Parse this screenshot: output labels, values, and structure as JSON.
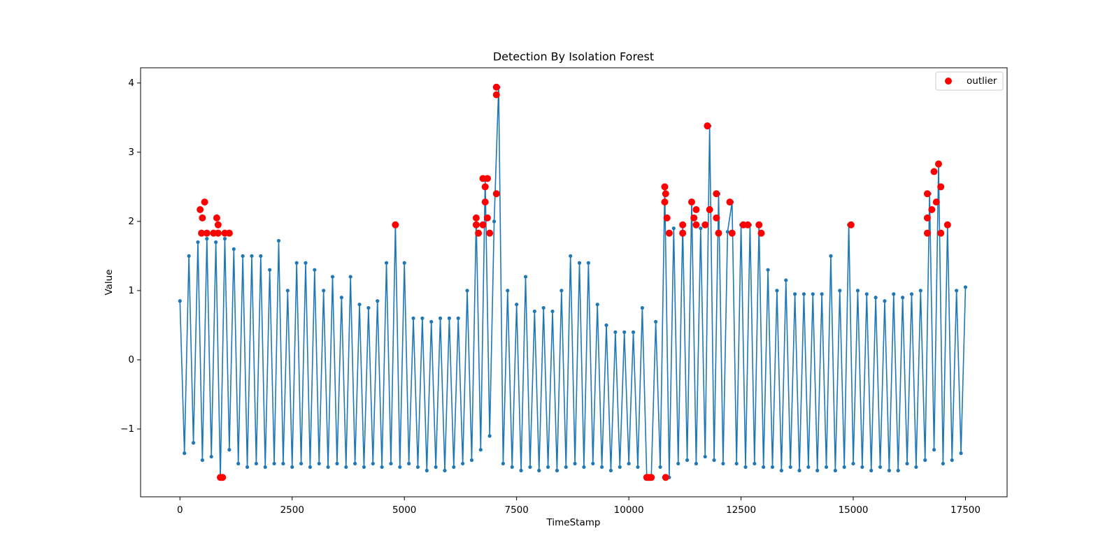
{
  "chart_data": {
    "type": "line",
    "title": "Detection By Isolation Forest",
    "xlabel": "TimeStamp",
    "ylabel": "Value",
    "xlim": [
      -877,
      18427
    ],
    "ylim": [
      -1.98,
      4.22
    ],
    "xticks": [
      0,
      2500,
      5000,
      7500,
      10000,
      12500,
      15000,
      17500
    ],
    "yticks": [
      {
        "value": -1,
        "label": "−1"
      },
      0,
      1,
      2,
      3,
      4
    ],
    "legend": "upper right",
    "series": [
      {
        "color": "#1f77b4",
        "marker": "circle",
        "x": [
          0,
          100,
          200,
          300,
          400,
          500,
          600,
          700,
          800,
          900,
          1000,
          1100,
          1200,
          1300,
          1400,
          1500,
          1600,
          1700,
          1800,
          1900,
          2000,
          2100,
          2200,
          2300,
          2400,
          2500,
          2600,
          2700,
          2800,
          2900,
          3000,
          3100,
          3200,
          3300,
          3400,
          3500,
          3600,
          3700,
          3800,
          3900,
          4000,
          4100,
          4200,
          4300,
          4400,
          4500,
          4600,
          4700,
          4800,
          4900,
          5000,
          5100,
          5200,
          5300,
          5400,
          5500,
          5600,
          5700,
          5800,
          5900,
          6000,
          6100,
          6200,
          6300,
          6400,
          6500,
          6600,
          6700,
          6800,
          6900,
          7000,
          7100,
          7200,
          7300,
          7400,
          7500,
          7600,
          7700,
          7800,
          7900,
          8000,
          8100,
          8200,
          8300,
          8400,
          8500,
          8600,
          8700,
          8800,
          8900,
          9000,
          9100,
          9200,
          9300,
          9400,
          9500,
          9600,
          9700,
          9800,
          9900,
          10000,
          10100,
          10200,
          10300,
          10400,
          10500,
          10600,
          10700,
          10800,
          10900,
          11000,
          11100,
          11200,
          11300,
          11400,
          11500,
          11600,
          11700,
          11800,
          11900,
          12000,
          12100,
          12200,
          12300,
          12400,
          12500,
          12600,
          12700,
          12800,
          12900,
          13000,
          13100,
          13200,
          13300,
          13400,
          13500,
          13600,
          13700,
          13800,
          13900,
          14000,
          14100,
          14200,
          14300,
          14400,
          14500,
          14600,
          14700,
          14800,
          14900,
          15000,
          15100,
          15200,
          15300,
          15400,
          15500,
          15600,
          15700,
          15800,
          15900,
          16000,
          16100,
          16200,
          16300,
          16400,
          16500,
          16600,
          16700,
          16800,
          16900,
          17000,
          17100,
          17200,
          17300,
          17400,
          17500
        ],
        "values": [
          0.85,
          -1.35,
          1.5,
          -1.2,
          1.7,
          -1.45,
          1.75,
          -1.4,
          1.7,
          -1.7,
          1.75,
          -1.3,
          1.6,
          -1.5,
          1.5,
          -1.55,
          1.5,
          -1.5,
          1.5,
          -1.55,
          1.3,
          -1.5,
          1.72,
          -1.5,
          1.0,
          -1.55,
          1.4,
          -1.5,
          1.4,
          -1.55,
          1.3,
          -1.5,
          1.0,
          -1.55,
          1.2,
          -1.5,
          0.9,
          -1.55,
          1.2,
          -1.5,
          0.8,
          -1.55,
          0.75,
          -1.5,
          0.85,
          -1.55,
          1.4,
          -1.5,
          1.95,
          -1.55,
          1.4,
          -1.5,
          0.6,
          -1.55,
          0.6,
          -1.6,
          0.55,
          -1.55,
          0.6,
          -1.6,
          0.6,
          -1.55,
          0.6,
          -1.5,
          1.0,
          -1.45,
          2.05,
          -1.3,
          2.62,
          -1.1,
          2.0,
          3.94,
          -1.5,
          1.0,
          -1.55,
          0.8,
          -1.6,
          1.2,
          -1.55,
          0.7,
          -1.6,
          0.75,
          -1.55,
          0.7,
          -1.6,
          1.0,
          -1.55,
          1.5,
          -1.5,
          1.4,
          -1.55,
          1.4,
          -1.5,
          0.8,
          -1.55,
          0.5,
          -1.6,
          0.4,
          -1.55,
          0.4,
          -1.5,
          0.4,
          -1.55,
          0.75,
          -1.7,
          -1.7,
          0.55,
          -1.55,
          2.5,
          -1.7,
          1.9,
          -1.5,
          1.95,
          -1.45,
          2.28,
          -1.5,
          1.9,
          -1.4,
          3.38,
          -1.45,
          2.4,
          -1.5,
          1.85,
          2.28,
          -1.5,
          1.95,
          -1.55,
          1.95,
          -1.5,
          1.95,
          -1.55,
          1.3,
          -1.55,
          1.0,
          -1.6,
          1.15,
          -1.55,
          0.95,
          -1.6,
          0.95,
          -1.55,
          0.95,
          -1.6,
          0.95,
          -1.55,
          1.5,
          -1.6,
          1.0,
          -1.55,
          1.95,
          -1.5,
          1.0,
          -1.55,
          0.95,
          -1.6,
          0.9,
          -1.55,
          0.85,
          -1.6,
          0.95,
          -1.6,
          0.9,
          -1.5,
          0.95,
          -1.55,
          1.0,
          -1.45,
          2.4,
          -1.3,
          2.83,
          -1.5,
          1.95,
          -1.45,
          1.0,
          -1.35,
          1.05
        ]
      },
      {
        "type": "scatter",
        "name": "outlier",
        "color": "#ff0000",
        "x": [
          450,
          500,
          550,
          480,
          600,
          750,
          820,
          850,
          850,
          900,
          950,
          1000,
          1100,
          4800,
          6600,
          6600,
          6650,
          6750,
          6800,
          6850,
          6800,
          6850,
          6750,
          6900,
          7050,
          7050,
          7050,
          10400,
          10450,
          10500,
          10820,
          10800,
          10820,
          10800,
          10850,
          10900,
          11200,
          11200,
          11400,
          11450,
          11500,
          11500,
          11700,
          11750,
          11800,
          11950,
          11950,
          12000,
          12250,
          12300,
          12550,
          12650,
          12900,
          12950,
          14950,
          16650,
          16650,
          16650,
          16800,
          16850,
          16900,
          16950,
          16950,
          17100,
          16750
        ],
        "values": [
          2.17,
          2.05,
          2.28,
          1.83,
          1.83,
          1.83,
          2.05,
          1.95,
          1.83,
          -1.7,
          -1.7,
          1.83,
          1.83,
          1.95,
          2.05,
          1.95,
          1.83,
          2.62,
          2.5,
          2.62,
          2.28,
          2.05,
          1.95,
          1.83,
          3.94,
          3.83,
          2.4,
          -1.7,
          -1.7,
          -1.7,
          -1.7,
          2.5,
          2.4,
          2.28,
          2.05,
          1.83,
          1.95,
          1.83,
          2.28,
          2.05,
          2.17,
          1.95,
          1.95,
          3.38,
          2.17,
          2.4,
          2.05,
          1.83,
          2.28,
          1.83,
          1.95,
          1.95,
          1.95,
          1.83,
          1.95,
          2.4,
          2.05,
          1.83,
          2.72,
          2.28,
          2.83,
          2.5,
          1.83,
          1.95,
          2.17
        ]
      }
    ]
  }
}
